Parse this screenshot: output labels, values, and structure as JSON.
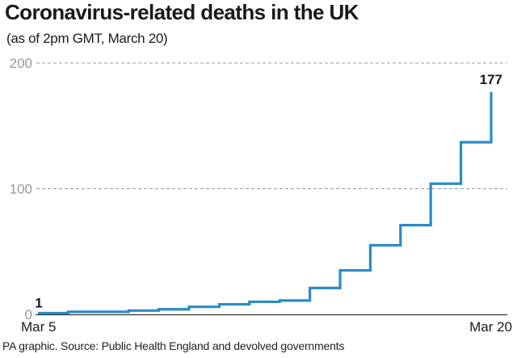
{
  "title": "Coronavirus-related deaths in the UK",
  "subtitle": "(as of 2pm GMT, March 20)",
  "source": "PA graphic. Source: Public Health England and devolved governments",
  "colors": {
    "line": "#2a8cc4",
    "grid": "#9a9a9a",
    "axis": "#333333",
    "text": "#1a1a1a",
    "tick": "#999999"
  },
  "chart_data": {
    "type": "line",
    "step": true,
    "x": [
      "Mar 5",
      "Mar 6",
      "Mar 7",
      "Mar 8",
      "Mar 9",
      "Mar 10",
      "Mar 11",
      "Mar 12",
      "Mar 13",
      "Mar 14",
      "Mar 15",
      "Mar 16",
      "Mar 17",
      "Mar 18",
      "Mar 19",
      "Mar 20"
    ],
    "values": [
      1,
      2,
      2,
      3,
      4,
      6,
      8,
      10,
      11,
      21,
      35,
      55,
      71,
      104,
      137,
      177
    ],
    "ylim": [
      0,
      200
    ],
    "yticks": [
      0,
      100,
      200
    ],
    "xtick_labels": [
      "Mar 5",
      "Mar 20"
    ],
    "annotations": [
      {
        "x": "Mar 5",
        "text": "1"
      },
      {
        "x": "Mar 20",
        "text": "177"
      }
    ],
    "grid": true
  }
}
